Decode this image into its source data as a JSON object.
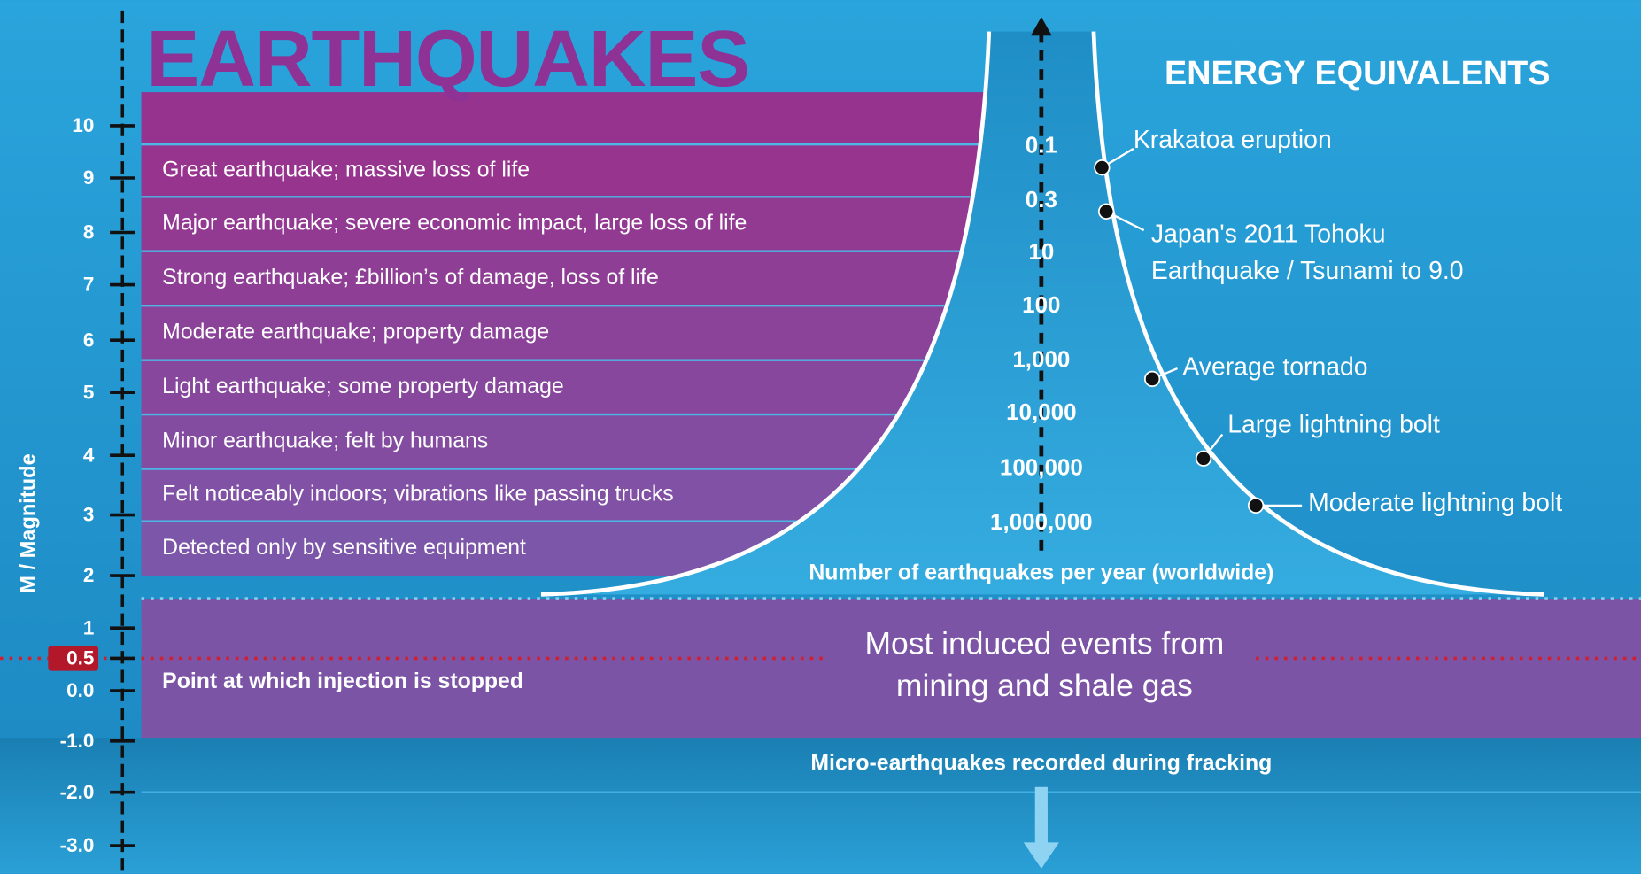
{
  "title": "EARTHQUAKES",
  "axis_label": "M / Magnitude",
  "energy_title": "ENERGY EQUIVALENTS",
  "magnitude_ticks": [
    "10",
    "9",
    "8",
    "7",
    "6",
    "5",
    "4",
    "3",
    "2",
    "1",
    "0.5",
    "0.0",
    "-1.0",
    "-2.0",
    "-3.0"
  ],
  "descriptions": [
    "Great earthquake; massive loss of life",
    "Major earthquake; severe economic impact, large loss of life",
    "Strong earthquake; £billion’s of damage, loss of life",
    "Moderate earthquake; property damage",
    "Light earthquake; some property damage",
    "Minor earthquake; felt by humans",
    "Felt noticeably indoors; vibrations like passing trucks",
    "Detected only by sensitive equipment"
  ],
  "counts": [
    "0.1",
    "0.3",
    "10",
    "100",
    "1,000",
    "10,000",
    "100,000",
    "1,000,000"
  ],
  "count_caption": "Number of earthquakes per year (worldwide)",
  "energy_equivalents": [
    [
      "Krakatoa eruption"
    ],
    [
      "Japan's 2011 Tohoku",
      "Earthquake / Tsunami to 9.0"
    ],
    [
      "Average tornado"
    ],
    [
      "Large lightning bolt"
    ],
    [
      "Moderate lightning bolt"
    ]
  ],
  "injection_label": "Point at which injection is stopped",
  "induced_label": [
    "Most induced events from",
    "mining and shale gas"
  ],
  "fracking_label": "Micro-earthquakes recorded during fracking"
}
